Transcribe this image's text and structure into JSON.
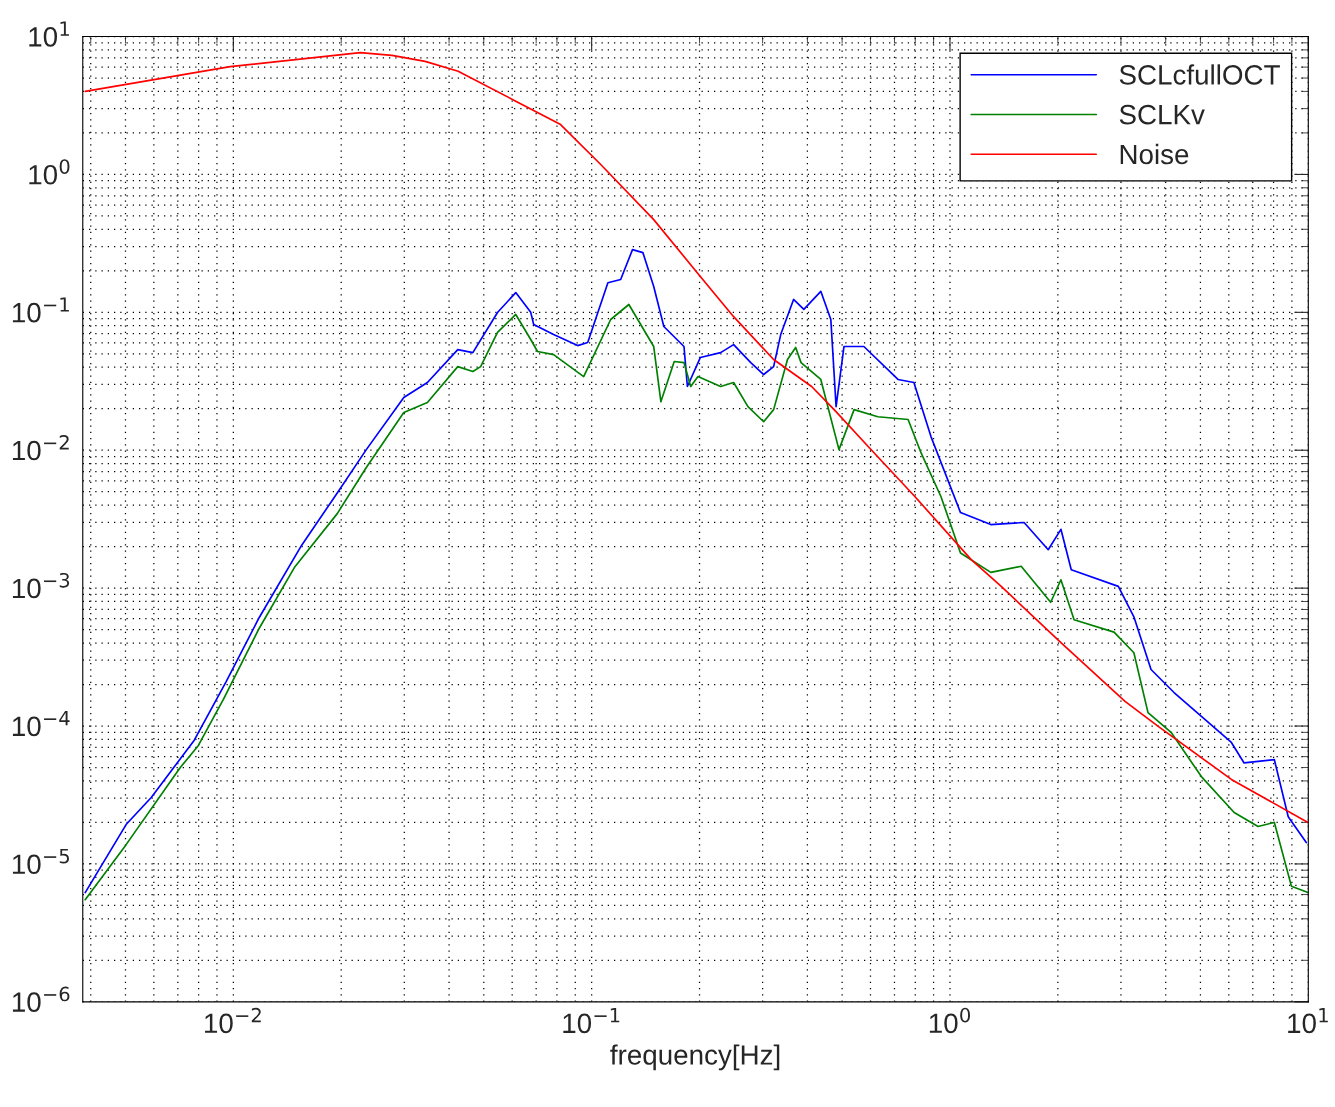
{
  "chart_data": {
    "type": "line",
    "xlabel": "frequency[Hz]",
    "log": "xy",
    "grid": true,
    "legend": "top right",
    "line_style": "solid",
    "xlim": [
      0.0038,
      10
    ],
    "ylim": [
      1e-06,
      10
    ],
    "xticks": [
      {
        "value": 0.01,
        "label": "10$^{−2}$"
      },
      {
        "value": 0.1,
        "label": "10$^{−1}$"
      },
      {
        "value": 1,
        "label": "10$^{0}$"
      },
      {
        "value": 10,
        "label": "10$^{1}$"
      }
    ],
    "yticks": [
      {
        "value": 1e-06,
        "label": "10$^{−6}$"
      },
      {
        "value": 1e-05,
        "label": "10$^{−5}$"
      },
      {
        "value": 0.0001,
        "label": "10$^{−4}$"
      },
      {
        "value": 0.001,
        "label": "10$^{−3}$"
      },
      {
        "value": 0.01,
        "label": "10$^{−2}$"
      },
      {
        "value": 0.1,
        "label": "10$^{−1}$"
      },
      {
        "value": 1,
        "label": "10$^{0}$"
      },
      {
        "value": 10,
        "label": "10$^{1}$"
      }
    ],
    "series": [
      {
        "name": "SCLcfullOCT",
        "color": "#0000ff",
        "x": [
          0.00386,
          0.00502,
          0.0059,
          0.00778,
          0.00955,
          0.0118,
          0.0155,
          0.0195,
          0.0235,
          0.0299,
          0.0348,
          0.0423,
          0.0466,
          0.0546,
          0.0614,
          0.0676,
          0.0689,
          0.0783,
          0.0914,
          0.0975,
          0.111,
          0.1205,
          0.13,
          0.139,
          0.149,
          0.159,
          0.181,
          0.185,
          0.201,
          0.229,
          0.249,
          0.278,
          0.302,
          0.322,
          0.337,
          0.366,
          0.391,
          0.436,
          0.465,
          0.481,
          0.506,
          0.575,
          0.716,
          0.793,
          0.885,
          1.07,
          1.3,
          1.61,
          1.88,
          2.04,
          2.18,
          2.95,
          3.26,
          3.64,
          4.22,
          6.1,
          6.62,
          8.04,
          8.79,
          9.87
        ],
        "values": [
          6.2e-06,
          1.93e-05,
          3.03e-05,
          7.9e-05,
          0.00021,
          0.00061,
          0.00204,
          0.0049,
          0.0101,
          0.0241,
          0.031,
          0.0537,
          0.051,
          0.0998,
          0.139,
          0.1,
          0.0817,
          0.069,
          0.0574,
          0.0604,
          0.164,
          0.173,
          0.285,
          0.271,
          0.154,
          0.0789,
          0.0565,
          0.029,
          0.047,
          0.051,
          0.0583,
          0.0432,
          0.0354,
          0.0404,
          0.069,
          0.124,
          0.105,
          0.142,
          0.0887,
          0.0207,
          0.0565,
          0.0565,
          0.0326,
          0.031,
          0.01256,
          0.00353,
          0.00289,
          0.00299,
          0.0019,
          0.00267,
          0.00136,
          0.00103,
          0.00062,
          0.000257,
          0.000175,
          7.6e-05,
          5.4e-05,
          5.7e-05,
          2.2e-05,
          1.43e-05
        ]
      },
      {
        "name": "SCLKv",
        "color": "#008000",
        "x": [
          0.00386,
          0.00502,
          0.00711,
          0.00798,
          0.00938,
          0.0118,
          0.0148,
          0.0195,
          0.0235,
          0.0299,
          0.0348,
          0.0423,
          0.0466,
          0.049,
          0.0546,
          0.0614,
          0.0676,
          0.0706,
          0.0783,
          0.095,
          0.113,
          0.127,
          0.149,
          0.156,
          0.17,
          0.181,
          0.189,
          0.198,
          0.229,
          0.249,
          0.273,
          0.302,
          0.322,
          0.352,
          0.371,
          0.384,
          0.436,
          0.49,
          0.54,
          0.629,
          0.764,
          0.83,
          0.944,
          1.07,
          1.3,
          1.58,
          1.91,
          2.04,
          2.22,
          2.87,
          3.26,
          3.57,
          4.14,
          5.03,
          6.21,
          7.24,
          8.04,
          8.97,
          9.98
        ],
        "values": [
          5.5e-06,
          1.38e-05,
          5e-05,
          7.2e-05,
          0.000156,
          0.00051,
          0.00141,
          0.00347,
          0.0075,
          0.0188,
          0.0222,
          0.0404,
          0.0372,
          0.0404,
          0.0715,
          0.0965,
          0.0635,
          0.052,
          0.0494,
          0.0342,
          0.0887,
          0.114,
          0.0565,
          0.0225,
          0.044,
          0.0432,
          0.029,
          0.0342,
          0.029,
          0.031,
          0.0207,
          0.0161,
          0.0197,
          0.0455,
          0.0556,
          0.0432,
          0.0326,
          0.0101,
          0.0197,
          0.0175,
          0.0167,
          0.0096,
          0.0046,
          0.0018,
          0.0013,
          0.00144,
          0.00079,
          0.00115,
          0.00059,
          0.00048,
          0.00034,
          0.000125,
          9e-05,
          4.3e-05,
          2.36e-05,
          1.87e-05,
          2e-05,
          6.9e-06,
          6.2e-06
        ]
      },
      {
        "name": "Noise",
        "color": "#ff0000",
        "x": [
          0.00386,
          0.0098,
          0.0226,
          0.0277,
          0.0343,
          0.0424,
          0.0614,
          0.0819,
          0.106,
          0.149,
          0.201,
          0.249,
          0.322,
          0.411,
          0.475,
          0.592,
          0.799,
          1.146,
          1.39,
          2.04,
          3.08,
          3.82,
          6.1,
          9.98
        ],
        "values": [
          4.0,
          6.05,
          7.65,
          7.3,
          6.6,
          5.6,
          3.4,
          2.3,
          1.18,
          0.47,
          0.182,
          0.093,
          0.0455,
          0.029,
          0.0197,
          0.0106,
          0.0046,
          0.00161,
          0.00103,
          0.000403,
          0.000151,
          9.9e-05,
          4.1e-05,
          2e-05
        ]
      }
    ]
  }
}
